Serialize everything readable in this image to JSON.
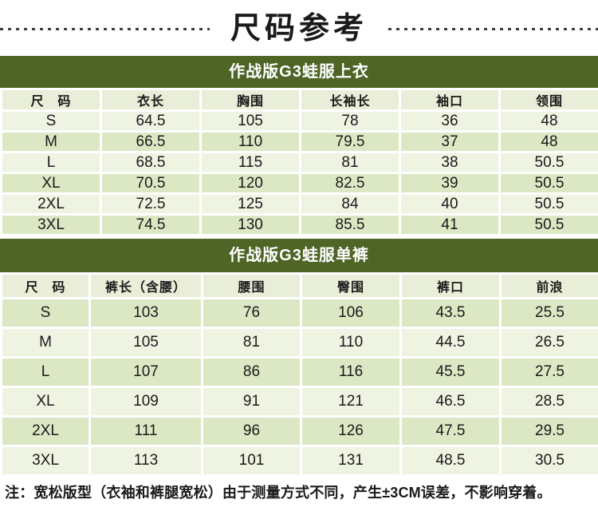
{
  "page": {
    "title": "尺码参考",
    "note": "注：宽松版型（衣袖和裤腿宽松）由于测量方式不同，产生±3CM误差，不影响穿着。"
  },
  "colors": {
    "band_background": "#4e6526",
    "band_text": "#ffffff",
    "header_row_background": "#e9eed8",
    "row_light": "#eef3e2",
    "row_green": "#dce8c4",
    "page_background": "#ffffff",
    "text": "#1a1a1a",
    "divider_dots": "#3c3c3c"
  },
  "tables": [
    {
      "title": "作战版G3蛙服上衣",
      "columns": [
        "尺　码",
        "衣长",
        "胸围",
        "长袖长",
        "袖口",
        "领围"
      ],
      "rows": [
        [
          "S",
          "64.5",
          "105",
          "78",
          "36",
          "48"
        ],
        [
          "M",
          "66.5",
          "110",
          "79.5",
          "37",
          "48"
        ],
        [
          "L",
          "68.5",
          "115",
          "81",
          "38",
          "50.5"
        ],
        [
          "XL",
          "70.5",
          "120",
          "82.5",
          "39",
          "50.5"
        ],
        [
          "2XL",
          "72.5",
          "125",
          "84",
          "40",
          "50.5"
        ],
        [
          "3XL",
          "74.5",
          "130",
          "85.5",
          "41",
          "50.5"
        ]
      ]
    },
    {
      "title": "作战版G3蛙服单裤",
      "columns": [
        "尺　码",
        "裤长（含腰）",
        "腰围",
        "臀围",
        "裤口",
        "前浪"
      ],
      "rows": [
        [
          "S",
          "103",
          "76",
          "106",
          "43.5",
          "25.5"
        ],
        [
          "M",
          "105",
          "81",
          "110",
          "44.5",
          "26.5"
        ],
        [
          "L",
          "107",
          "86",
          "116",
          "45.5",
          "27.5"
        ],
        [
          "XL",
          "109",
          "91",
          "121",
          "46.5",
          "28.5"
        ],
        [
          "2XL",
          "111",
          "96",
          "126",
          "47.5",
          "29.5"
        ],
        [
          "3XL",
          "113",
          "101",
          "131",
          "48.5",
          "30.5"
        ]
      ]
    }
  ]
}
